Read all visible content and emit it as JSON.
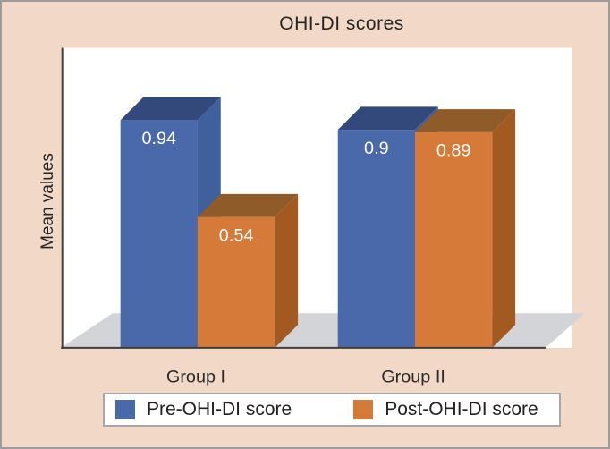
{
  "window": {
    "background": "#f1d8c7",
    "frame_border_color": "#9c9c9c"
  },
  "chart_data": {
    "type": "bar",
    "effect": "3d",
    "title": "OHI-DI scores",
    "ylabel": "Mean values",
    "xlabel": "",
    "categories": [
      "Group I",
      "Group II"
    ],
    "series": [
      {
        "name": "Pre-OHI-DI score",
        "values": [
          0.94,
          0.9
        ],
        "value_labels": [
          "0.94",
          "0.9"
        ],
        "colors": {
          "front": "#4a69aa",
          "top": "#33497b",
          "side": "#40609d"
        }
      },
      {
        "name": "Post-OHI-DI score",
        "values": [
          0.54,
          0.89
        ],
        "value_labels": [
          "0.54",
          "0.89"
        ],
        "colors": {
          "front": "#d67a3a",
          "top": "#8f5b29",
          "side": "#a35a21"
        }
      }
    ],
    "ylim": [
      0,
      1.25
    ],
    "gridlines": false,
    "y_axis_ticks_visible": false,
    "legend_position": "bottom",
    "value_label_color": "#ffffff",
    "plot_background": "#ffffff",
    "floor_color": "#d2d4d7",
    "axis_color": "#3f3f3f",
    "text_color": "#2b2b2b"
  }
}
